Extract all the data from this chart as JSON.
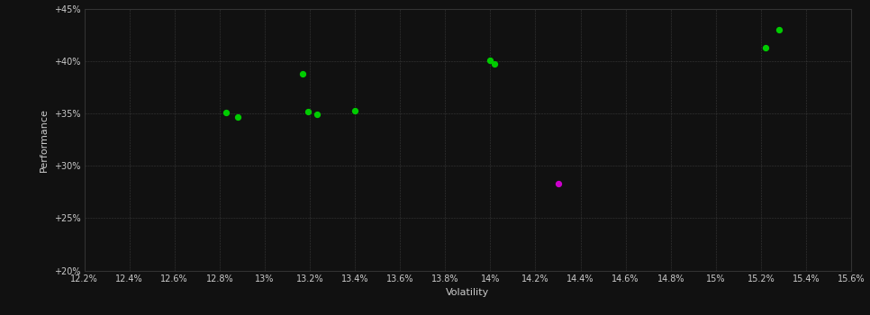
{
  "background_color": "#111111",
  "grid_color": "#555555",
  "text_color": "#cccccc",
  "xlabel": "Volatility",
  "ylabel": "Performance",
  "xlim": [
    0.122,
    0.156
  ],
  "ylim": [
    0.2,
    0.45
  ],
  "xticks": [
    0.122,
    0.124,
    0.126,
    0.128,
    0.13,
    0.132,
    0.134,
    0.136,
    0.138,
    0.14,
    0.142,
    0.144,
    0.146,
    0.148,
    0.15,
    0.152,
    0.154,
    0.156
  ],
  "yticks": [
    0.2,
    0.25,
    0.3,
    0.35,
    0.4,
    0.45
  ],
  "xtick_labels": [
    "12.2%",
    "12.4%",
    "12.6%",
    "12.8%",
    "13%",
    "13.2%",
    "13.4%",
    "13.6%",
    "13.8%",
    "14%",
    "14.2%",
    "14.4%",
    "14.6%",
    "14.8%",
    "15%",
    "15.2%",
    "15.4%",
    "15.6%"
  ],
  "ytick_labels": [
    "+20%",
    "+25%",
    "+30%",
    "+35%",
    "+40%",
    "+45%"
  ],
  "green_points": [
    [
      0.1283,
      0.351
    ],
    [
      0.1288,
      0.347
    ],
    [
      0.1317,
      0.388
    ],
    [
      0.1319,
      0.352
    ],
    [
      0.1323,
      0.349
    ],
    [
      0.134,
      0.353
    ],
    [
      0.14,
      0.401
    ],
    [
      0.1402,
      0.397
    ],
    [
      0.1522,
      0.413
    ],
    [
      0.1528,
      0.43
    ]
  ],
  "magenta_points": [
    [
      0.143,
      0.283
    ]
  ],
  "point_size": 18,
  "marker": "o",
  "fig_width": 9.66,
  "fig_height": 3.5,
  "dpi": 100
}
